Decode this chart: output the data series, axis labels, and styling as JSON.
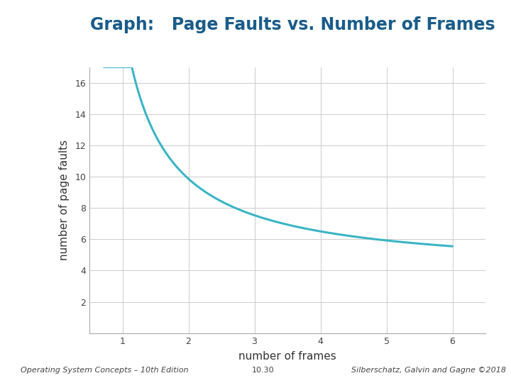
{
  "title": "Graph:   Page Faults vs. Number of Frames",
  "title_color": "#1a5c8a",
  "title_fontsize": 17,
  "title_fontweight": "bold",
  "xlabel": "number of frames",
  "ylabel": "number of page faults",
  "xlabel_fontsize": 11,
  "ylabel_fontsize": 11,
  "xlim": [
    0.5,
    6.5
  ],
  "ylim": [
    0,
    17
  ],
  "xticks": [
    1,
    2,
    3,
    4,
    5,
    6
  ],
  "yticks": [
    2,
    4,
    6,
    8,
    10,
    12,
    14,
    16
  ],
  "curve_color": "#3ab5c6",
  "curve_linewidth": 2.2,
  "grid_color": "#cccccc",
  "background_color": "#ffffff",
  "left_bar_color": "#4a6fa5",
  "footer_left": "Operating System Concepts – 10th Edition",
  "footer_center": "10.30",
  "footer_right": "Silberschatz, Galvin and Gagne ©2018",
  "footer_fontsize": 8,
  "header_line_color": "#2e6b9e",
  "curve_a": 9.5,
  "curve_b": 0.42,
  "curve_c": 3.85,
  "curve_start_x": 0.72,
  "curve_end_x": 6.0,
  "tick_labelsize": 9,
  "spine_color": "#aaaaaa"
}
